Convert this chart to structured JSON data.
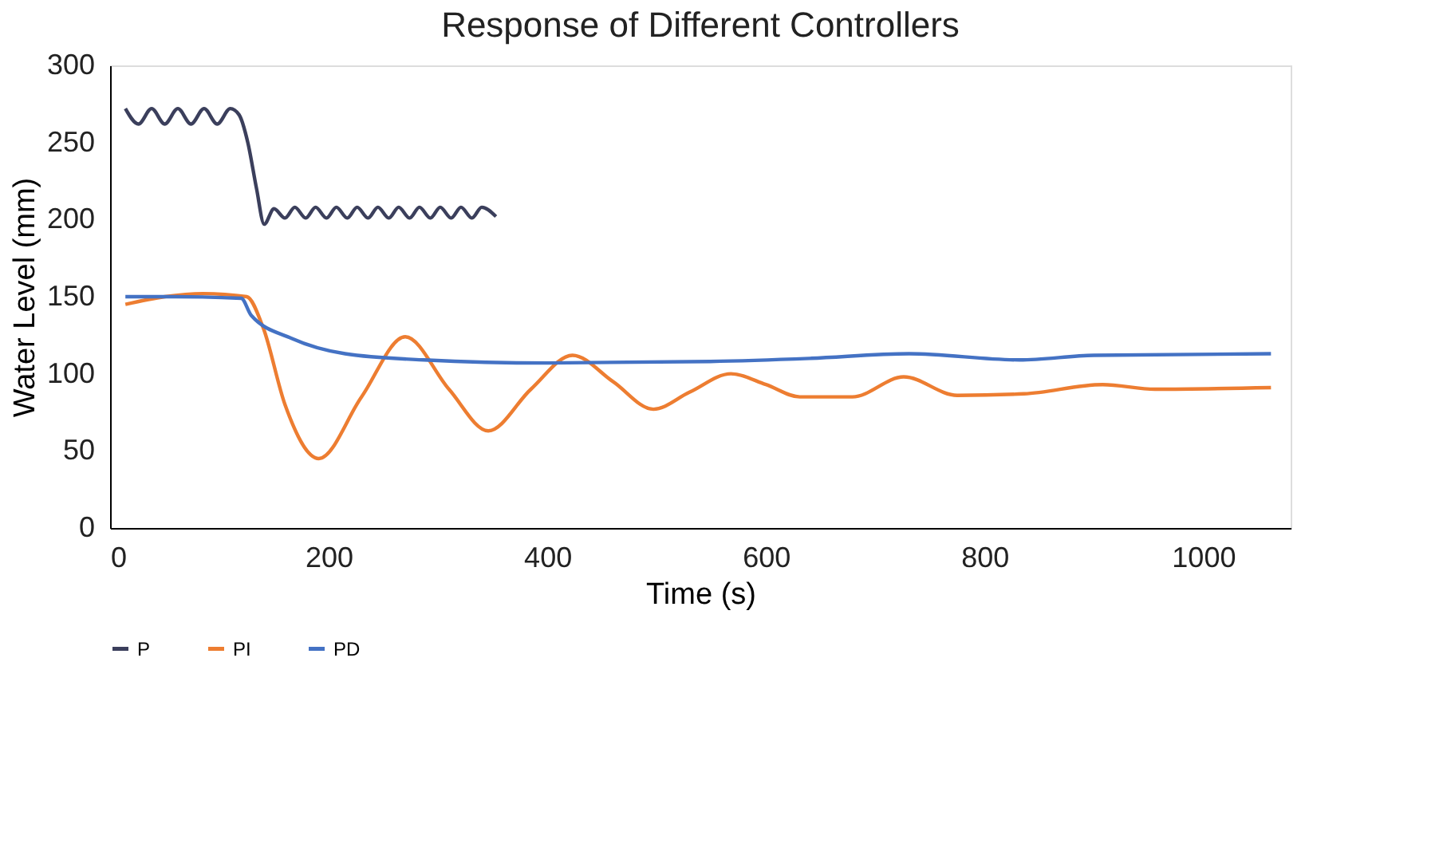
{
  "chart_data": {
    "type": "line",
    "title": "Response of Different Controllers",
    "xlabel": "Time (s)",
    "ylabel": "Water Level (mm)",
    "xlim": [
      0,
      1080
    ],
    "xticks": [
      0,
      200,
      400,
      600,
      800,
      1000
    ],
    "ylim": [
      0,
      300
    ],
    "yticks": [
      0,
      50,
      100,
      150,
      200,
      250,
      300
    ],
    "grid": false,
    "legend": "bottom",
    "line_style": "solid",
    "marker": "none",
    "series": [
      {
        "name": "P",
        "color": "#3b3f5c",
        "x": [
          14,
          26,
          38,
          50,
          62,
          74,
          86,
          98,
          110,
          118,
          126,
          134,
          141,
          150,
          160,
          169,
          179,
          188,
          198,
          207,
          217,
          226,
          236,
          245,
          255,
          264,
          274,
          283,
          293,
          302,
          312,
          321,
          331,
          340,
          353
        ],
        "values": [
          272,
          262,
          272,
          262,
          272,
          262,
          272,
          262,
          272,
          268,
          250,
          220,
          197,
          207,
          201,
          208,
          201,
          208,
          201,
          208,
          201,
          208,
          201,
          208,
          201,
          208,
          201,
          208,
          201,
          208,
          201,
          208,
          201,
          208,
          202
        ]
      },
      {
        "name": "PI",
        "color": "#ed7d31",
        "x": [
          14,
          50,
          85,
          125,
          140,
          160,
          191,
          230,
          270,
          310,
          346,
          385,
          423,
          460,
          497,
          530,
          568,
          600,
          631,
          679,
          726,
          775,
          836,
          908,
          956,
          1062
        ],
        "values": [
          145,
          150,
          152,
          150,
          130,
          80,
          45,
          85,
          124,
          90,
          63,
          90,
          112,
          95,
          77,
          88,
          100,
          93,
          85,
          85,
          98,
          86,
          87,
          93,
          90,
          91
        ]
      },
      {
        "name": "PD",
        "color": "#4472c4",
        "x": [
          14,
          60,
          120,
          129,
          166,
          215,
          287,
          400,
          549,
          640,
          731,
          832,
          900,
          1062
        ],
        "values": [
          150,
          150,
          149,
          138,
          123,
          113,
          109,
          107,
          108,
          110,
          113,
          109,
          112,
          113
        ]
      }
    ]
  }
}
